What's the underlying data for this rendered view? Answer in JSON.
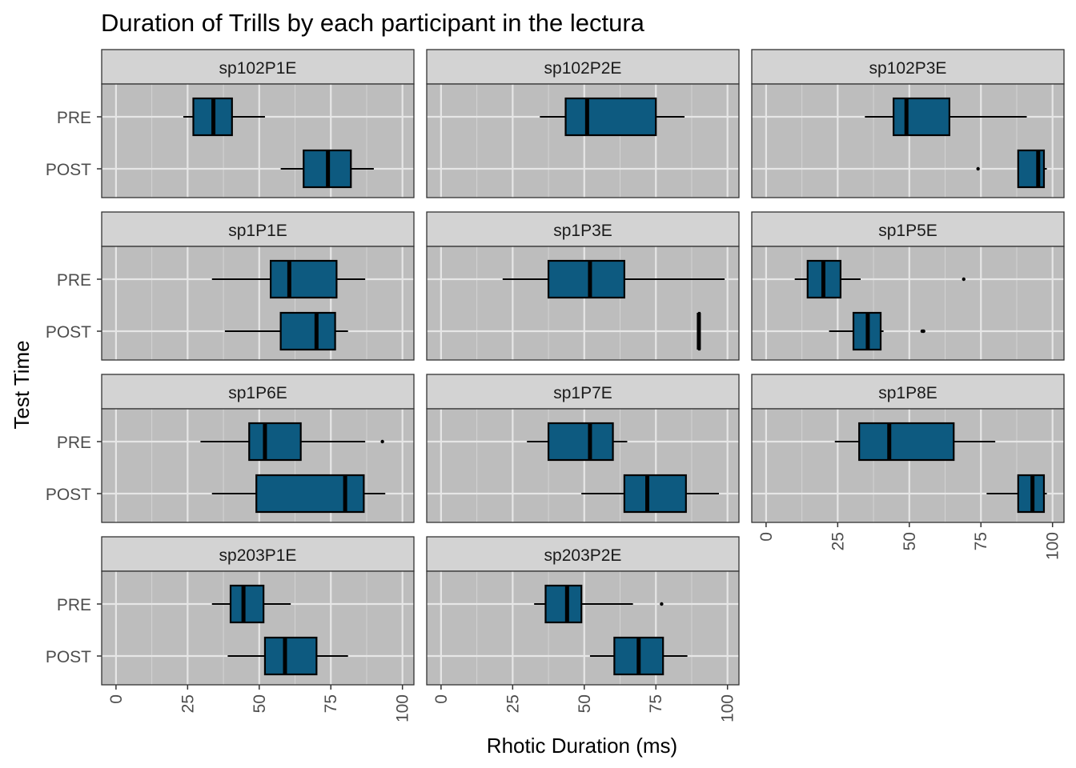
{
  "chart_data": {
    "type": "boxplot",
    "title": "Duration of Trills by each participant in the lectura",
    "xlabel": "Rhotic Duration (ms)",
    "ylabel": "Test Time",
    "xlim": [
      -5,
      104
    ],
    "x_ticks": [
      "0",
      "25",
      "50",
      "75",
      "100"
    ],
    "categories": [
      "PRE",
      "POST"
    ],
    "colors": {
      "panel_bg": "#bdbdbd",
      "strip_bg": "#d3d3d3",
      "box_fill": "#0d5a80",
      "grid": "#e6e6e6",
      "outline": "#000000"
    },
    "panels": [
      {
        "name": "sp102P1E",
        "boxes": [
          {
            "group": "PRE",
            "min": 23.5,
            "q1": 27,
            "median": 34,
            "q3": 40.5,
            "max": 52,
            "outliers": []
          },
          {
            "group": "POST",
            "min": 57.5,
            "q1": 65.5,
            "median": 74,
            "q3": 82,
            "max": 90,
            "outliers": []
          }
        ]
      },
      {
        "name": "sp102P2E",
        "boxes": [
          {
            "group": "PRE",
            "min": 34.5,
            "q1": 43.5,
            "median": 51,
            "q3": 75,
            "max": 85,
            "outliers": []
          }
        ]
      },
      {
        "name": "sp102P3E",
        "boxes": [
          {
            "group": "PRE",
            "min": 34.5,
            "q1": 44.5,
            "median": 49,
            "q3": 64,
            "max": 91,
            "outliers": []
          },
          {
            "group": "POST",
            "min": 88,
            "q1": 88,
            "median": 95,
            "q3": 97,
            "max": 98,
            "outliers": [
              74
            ]
          }
        ]
      },
      {
        "name": "sp1P1E",
        "boxes": [
          {
            "group": "PRE",
            "min": 33.5,
            "q1": 54,
            "median": 60.5,
            "q3": 77,
            "max": 87,
            "outliers": []
          },
          {
            "group": "POST",
            "min": 38,
            "q1": 57.5,
            "median": 70,
            "q3": 76.5,
            "max": 81,
            "outliers": []
          }
        ]
      },
      {
        "name": "sp1P3E",
        "boxes": [
          {
            "group": "PRE",
            "min": 21.5,
            "q1": 37.5,
            "median": 52,
            "q3": 64,
            "max": 99,
            "outliers": []
          },
          {
            "group": "POST",
            "min": 90,
            "q1": 90,
            "median": 90,
            "q3": 90,
            "max": 90,
            "outliers": []
          }
        ]
      },
      {
        "name": "sp1P5E",
        "boxes": [
          {
            "group": "PRE",
            "min": 10,
            "q1": 14.5,
            "median": 20,
            "q3": 26,
            "max": 33,
            "outliers": [
              69
            ]
          },
          {
            "group": "POST",
            "min": 22,
            "q1": 30.5,
            "median": 35.5,
            "q3": 40,
            "max": 41,
            "outliers": [
              54.5,
              55
            ]
          }
        ]
      },
      {
        "name": "sp1P6E",
        "boxes": [
          {
            "group": "PRE",
            "min": 29.5,
            "q1": 46.5,
            "median": 52,
            "q3": 64.5,
            "max": 87,
            "outliers": [
              93
            ]
          },
          {
            "group": "POST",
            "min": 33.5,
            "q1": 49,
            "median": 80,
            "q3": 86.5,
            "max": 94,
            "outliers": []
          }
        ]
      },
      {
        "name": "sp1P7E",
        "boxes": [
          {
            "group": "PRE",
            "min": 30,
            "q1": 37.5,
            "median": 52,
            "q3": 60,
            "max": 65,
            "outliers": []
          },
          {
            "group": "POST",
            "min": 49,
            "q1": 64,
            "median": 72,
            "q3": 85.5,
            "max": 97,
            "outliers": []
          }
        ]
      },
      {
        "name": "sp1P8E",
        "boxes": [
          {
            "group": "PRE",
            "min": 24,
            "q1": 32.5,
            "median": 43,
            "q3": 65.5,
            "max": 80,
            "outliers": []
          },
          {
            "group": "POST",
            "min": 77,
            "q1": 88,
            "median": 93,
            "q3": 97,
            "max": 98,
            "outliers": []
          }
        ]
      },
      {
        "name": "sp203P1E",
        "boxes": [
          {
            "group": "PRE",
            "min": 33.5,
            "q1": 40,
            "median": 44.5,
            "q3": 51.5,
            "max": 61,
            "outliers": []
          },
          {
            "group": "POST",
            "min": 39,
            "q1": 52,
            "median": 59,
            "q3": 70,
            "max": 81,
            "outliers": []
          }
        ]
      },
      {
        "name": "sp203P2E",
        "boxes": [
          {
            "group": "PRE",
            "min": 32.5,
            "q1": 36.5,
            "median": 44,
            "q3": 49,
            "max": 67,
            "outliers": [
              77
            ]
          },
          {
            "group": "POST",
            "min": 52,
            "q1": 60.5,
            "median": 69,
            "q3": 77.5,
            "max": 86,
            "outliers": []
          }
        ]
      }
    ]
  }
}
